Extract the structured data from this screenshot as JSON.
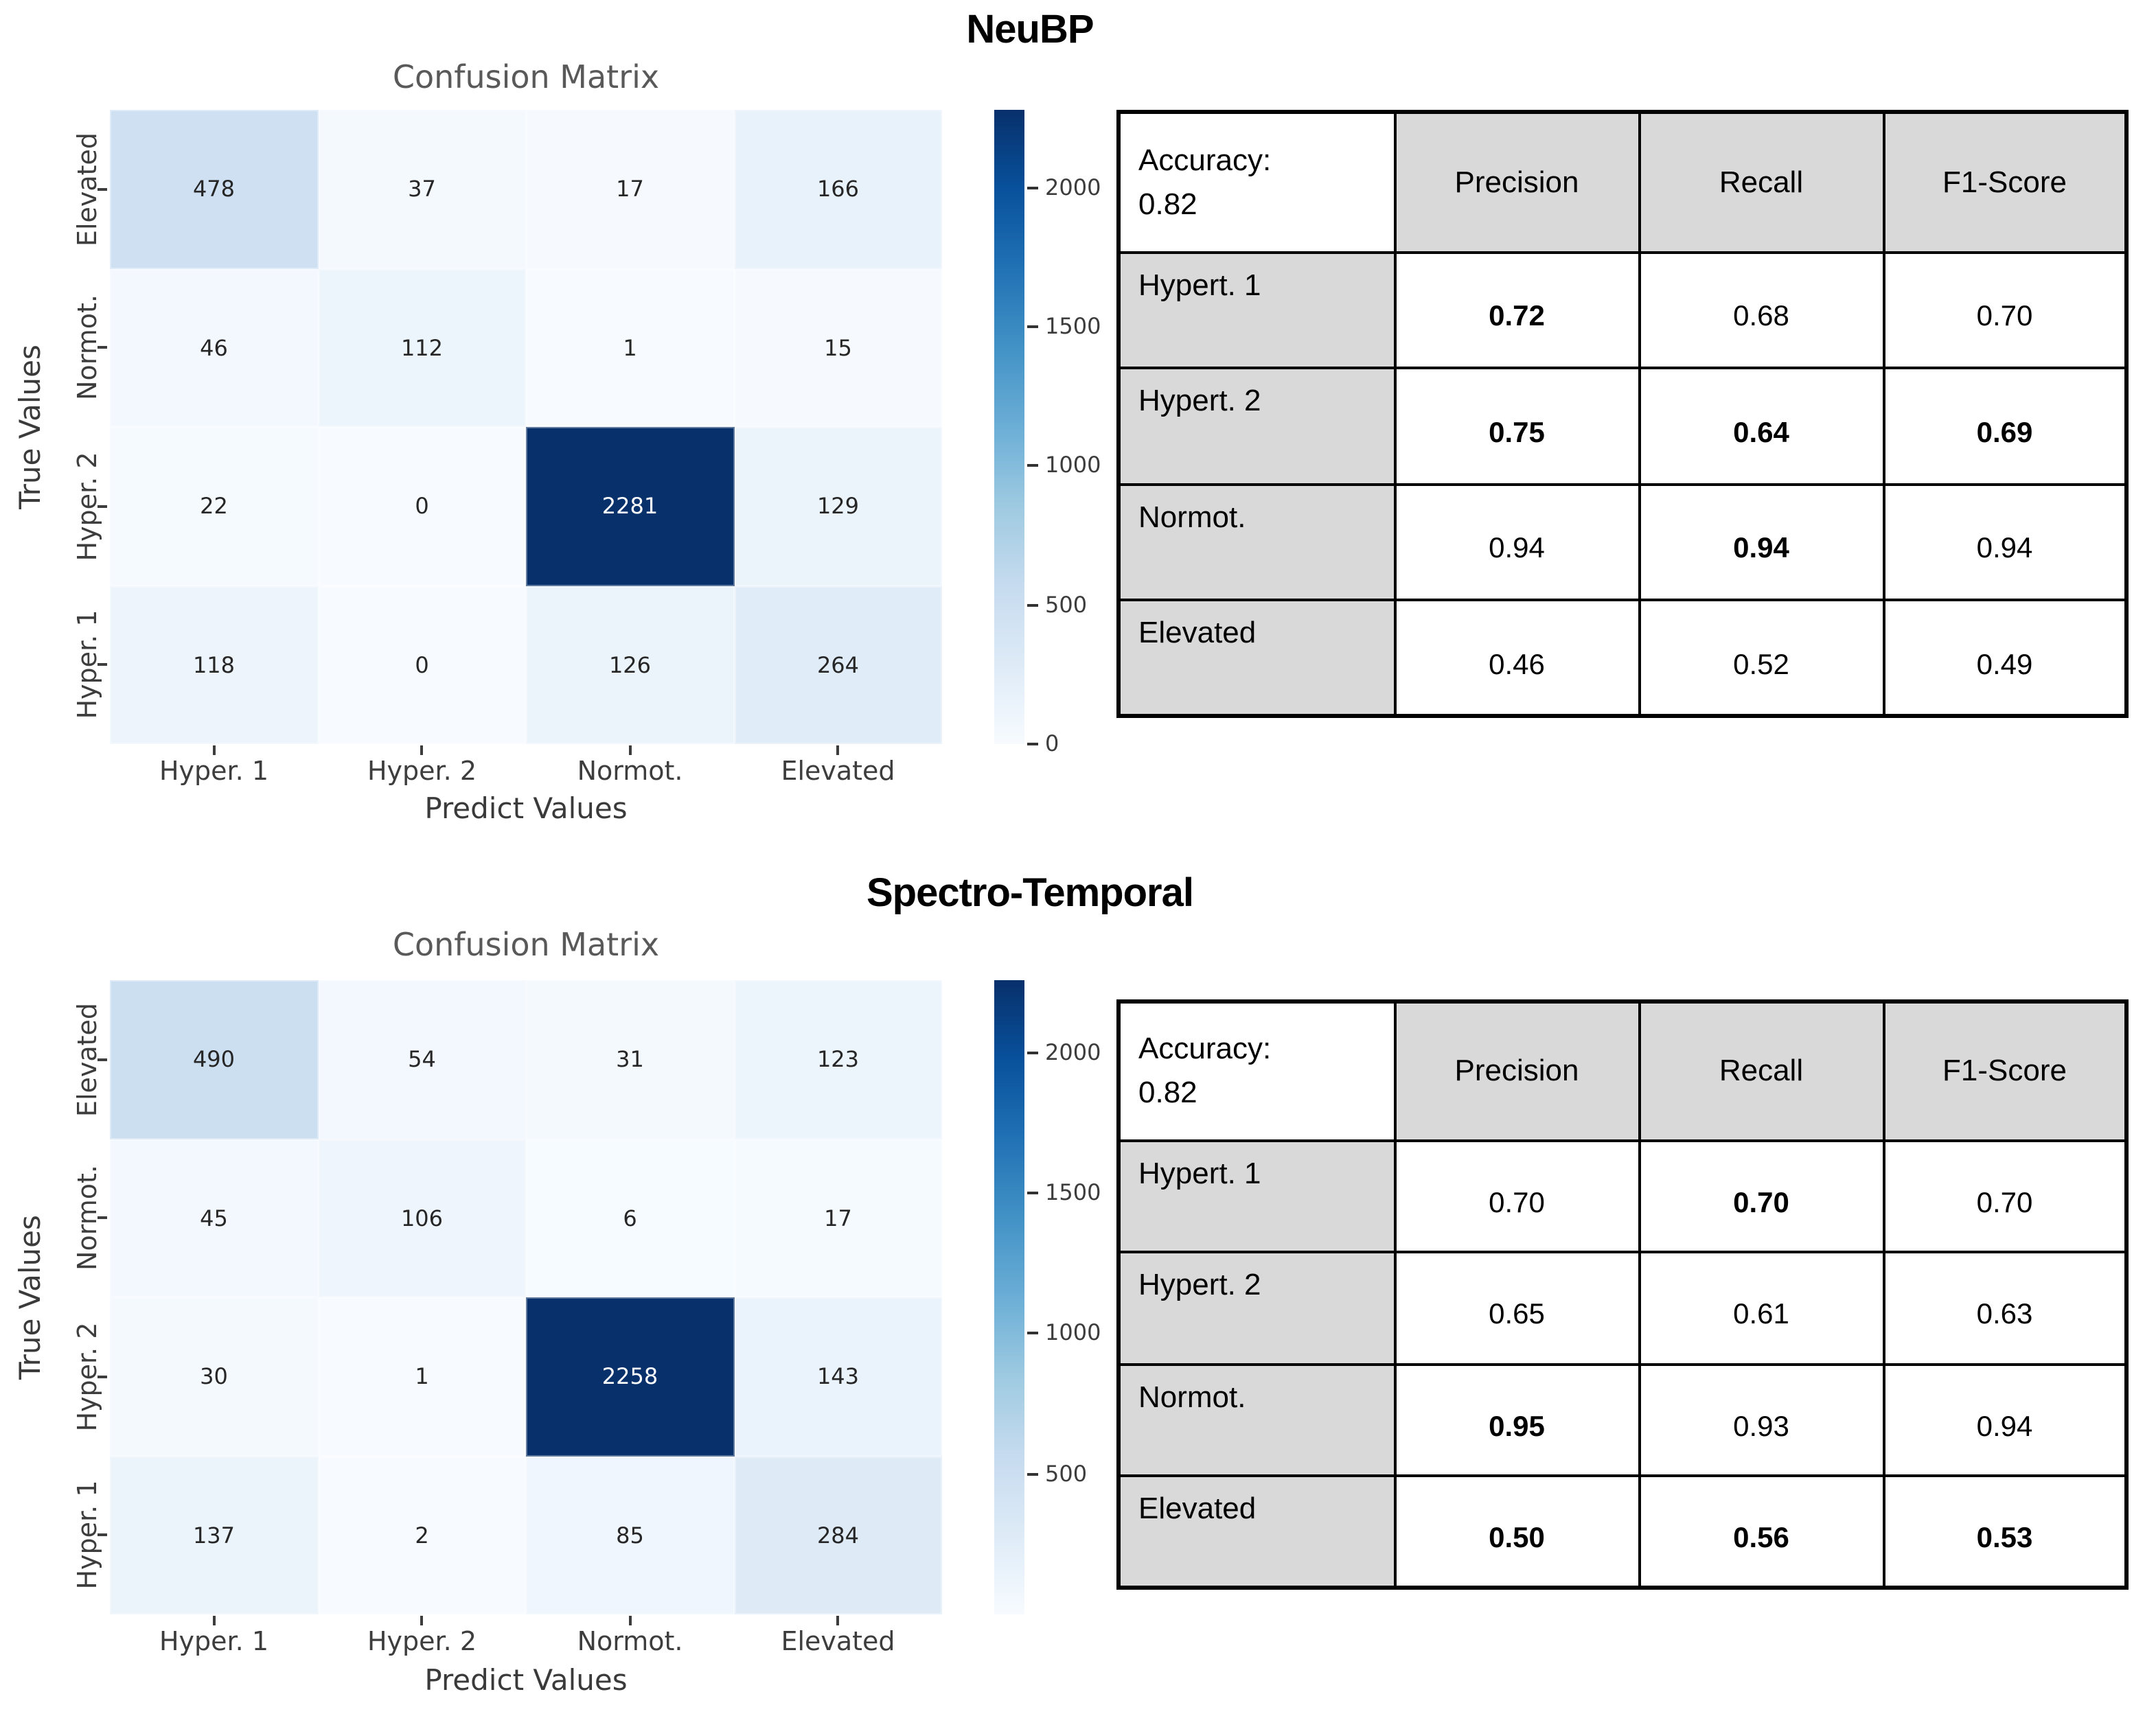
{
  "colors": {
    "figure_background": "#ffffff",
    "colormap_name": "Blues",
    "colormap_stops": [
      "#f7fbff",
      "#deebf7",
      "#c6dbef",
      "#9ecae1",
      "#6baed6",
      "#4292c6",
      "#2171b5",
      "#08519c",
      "#08306b"
    ],
    "annotation_dark": "#262626",
    "annotation_light": "#ffffff",
    "plot_title_color": "#595959",
    "axis_label_color": "#3a3a3a",
    "tick_label_color": "#3d3d3d",
    "table_header_bg": "#d9d9d9",
    "table_border": "#000000",
    "panel_title_color": "#000000"
  },
  "chart_data": [
    {
      "type": "heatmap",
      "panel_title": "NeuBP",
      "title": "Confusion Matrix",
      "xlabel": "Predict Values",
      "ylabel": "True Values",
      "x_categories": [
        "Hyper. 1",
        "Hyper. 2",
        "Normot.",
        "Elevated"
      ],
      "y_categories": [
        "Elevated",
        "Normot.",
        "Hyper. 2",
        "Hyper. 1"
      ],
      "values": [
        [
          478,
          37,
          17,
          166
        ],
        [
          46,
          112,
          1,
          15
        ],
        [
          22,
          0,
          2281,
          129
        ],
        [
          118,
          0,
          126,
          264
        ]
      ],
      "vmin": 0,
      "vmax": 2281,
      "colormap": "Blues",
      "colorbar_position": "right",
      "colorbar_ticks": [
        2000,
        1500,
        1000,
        500,
        0
      ],
      "grid": false
    },
    {
      "type": "table",
      "panel": "NeuBP",
      "corner_lines": [
        "Accuracy:",
        "0.82"
      ],
      "columns": [
        "Precision",
        "Recall",
        "F1-Score"
      ],
      "rows": [
        {
          "label": "Hypert. 1",
          "values": [
            "0.72",
            "0.68",
            "0.70"
          ],
          "bold": [
            true,
            false,
            false
          ]
        },
        {
          "label": "Hypert. 2",
          "values": [
            "0.75",
            "0.64",
            "0.69"
          ],
          "bold": [
            true,
            true,
            true
          ]
        },
        {
          "label": "Normot.",
          "values": [
            "0.94",
            "0.94",
            "0.94"
          ],
          "bold": [
            false,
            true,
            false
          ]
        },
        {
          "label": "Elevated",
          "values": [
            "0.46",
            "0.52",
            "0.49"
          ],
          "bold": [
            false,
            false,
            false
          ]
        }
      ]
    },
    {
      "type": "heatmap",
      "panel_title": "Spectro-Temporal",
      "title": "Confusion Matrix",
      "xlabel": "Predict Values",
      "ylabel": "True Values",
      "x_categories": [
        "Hyper. 1",
        "Hyper. 2",
        "Normot.",
        "Elevated"
      ],
      "y_categories": [
        "Elevated",
        "Normot.",
        "Hyper. 2",
        "Hyper. 1"
      ],
      "values": [
        [
          490,
          54,
          31,
          123
        ],
        [
          45,
          106,
          6,
          17
        ],
        [
          30,
          1,
          2258,
          143
        ],
        [
          137,
          2,
          85,
          284
        ]
      ],
      "vmin": 0,
      "vmax": 2258,
      "colormap": "Blues",
      "colorbar_position": "right",
      "colorbar_ticks": [
        2000,
        1500,
        1000,
        500
      ],
      "grid": false
    },
    {
      "type": "table",
      "panel": "Spectro-Temporal",
      "corner_lines": [
        "Accuracy:",
        "0.82"
      ],
      "columns": [
        "Precision",
        "Recall",
        "F1-Score"
      ],
      "rows": [
        {
          "label": "Hypert. 1",
          "values": [
            "0.70",
            "0.70",
            "0.70"
          ],
          "bold": [
            false,
            true,
            false
          ]
        },
        {
          "label": "Hypert. 2",
          "values": [
            "0.65",
            "0.61",
            "0.63"
          ],
          "bold": [
            false,
            false,
            false
          ]
        },
        {
          "label": "Normot.",
          "values": [
            "0.95",
            "0.93",
            "0.94"
          ],
          "bold": [
            true,
            false,
            false
          ]
        },
        {
          "label": "Elevated",
          "values": [
            "0.50",
            "0.56",
            "0.53"
          ],
          "bold": [
            true,
            true,
            true
          ]
        }
      ]
    }
  ]
}
